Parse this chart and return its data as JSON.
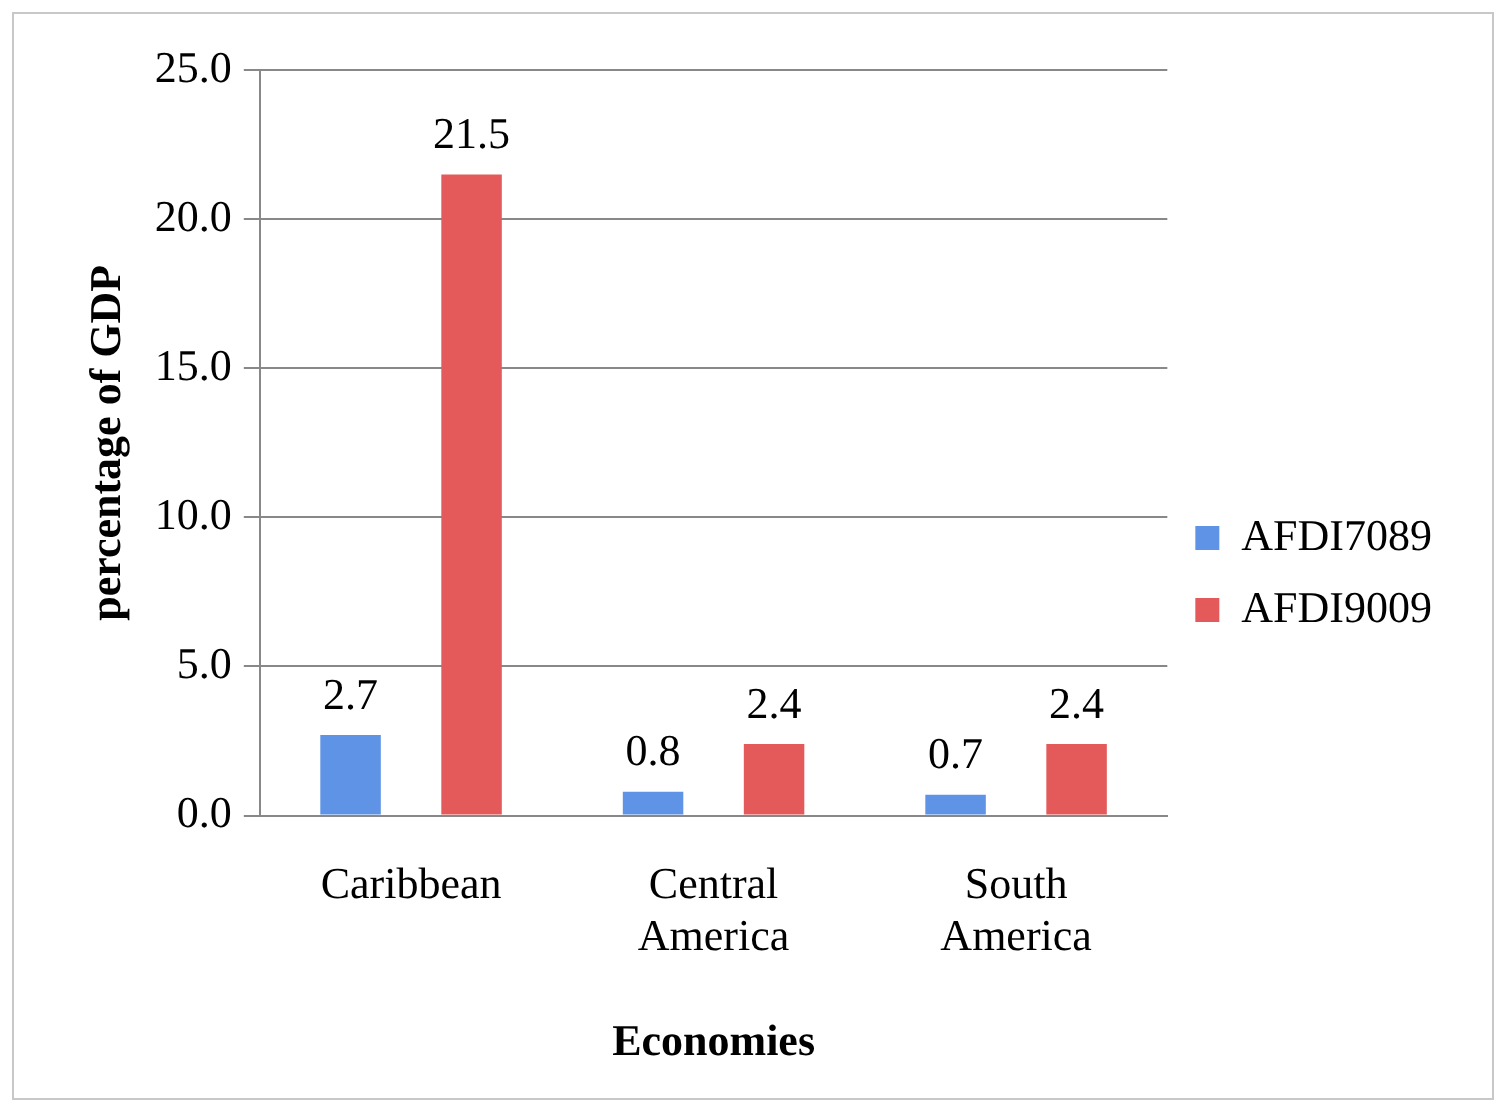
{
  "chart_data": {
    "type": "bar",
    "xlabel": "Economies",
    "ylabel": "percentage of GDP",
    "categories": [
      "Caribbean",
      "Central America",
      "South America"
    ],
    "series": [
      {
        "name": "AFDI7089",
        "color": "#5f93e6",
        "values": [
          2.7,
          0.8,
          0.7
        ]
      },
      {
        "name": "AFDI9009",
        "color": "#e45a5a",
        "values": [
          21.5,
          2.4,
          2.4
        ]
      }
    ],
    "ylim": [
      0,
      25
    ],
    "yticks": [
      {
        "value": 0,
        "label": "0.0"
      },
      {
        "value": 5,
        "label": "5.0"
      },
      {
        "value": 10,
        "label": "10.0"
      },
      {
        "value": 15,
        "label": "15.0"
      },
      {
        "value": 20,
        "label": "20.0"
      },
      {
        "value": 25,
        "label": "25.0"
      }
    ],
    "grid": "y",
    "legend": "right",
    "data_labels": true
  }
}
